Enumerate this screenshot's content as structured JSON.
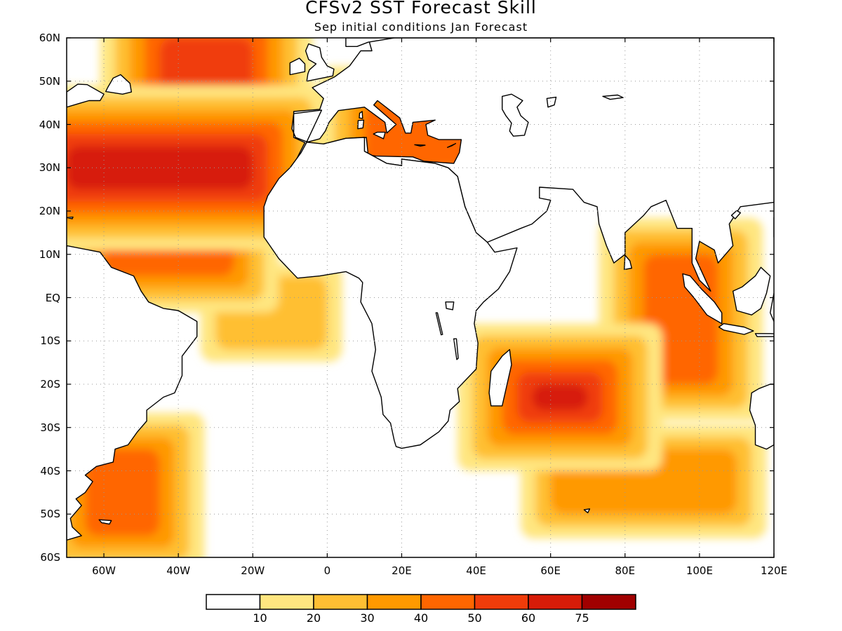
{
  "title": "CFSv2 SST Forecast Skill",
  "subtitle": "Sep initial conditions  Jan Forecast",
  "lat_labels": [
    "60N",
    "50N",
    "40N",
    "30N",
    "20N",
    "10N",
    "EQ",
    "10S",
    "20S",
    "30S",
    "40S",
    "50S",
    "60S"
  ],
  "lon_labels": [
    "60W",
    "40W",
    "20W",
    "0",
    "20E",
    "40E",
    "60E",
    "80E",
    "100E",
    "120E"
  ],
  "colorbar": {
    "labels": [
      "10",
      "20",
      "30",
      "40",
      "50",
      "60",
      "75"
    ],
    "colors": [
      "#ffffff",
      "#ffe680",
      "#ffbf33",
      "#ff9900",
      "#ff6600",
      "#f03c0a",
      "#d71c08",
      "#a00000"
    ]
  },
  "chart_data": {
    "type": "heatmap",
    "title": "CFSv2 SST Forecast Skill",
    "subtitle": "Sep initial conditions  Jan Forecast",
    "variable": "SST forecast skill",
    "xlim": [
      -70,
      120
    ],
    "ylim": [
      -60,
      60
    ],
    "x_ticks": [
      -60,
      -40,
      -20,
      0,
      20,
      40,
      60,
      80,
      100,
      120
    ],
    "y_ticks": [
      60,
      50,
      40,
      30,
      20,
      10,
      0,
      -10,
      -20,
      -30,
      -40,
      -50,
      -60
    ],
    "levels": [
      10,
      20,
      30,
      40,
      50,
      60,
      75
    ],
    "grid": true,
    "regions": [
      {
        "lon": [
          -70,
          -20
        ],
        "lat": [
          25,
          35
        ],
        "level": 60
      },
      {
        "lon": [
          -45,
          -20
        ],
        "lat": [
          35,
          60
        ],
        "level": 50
      },
      {
        "lon": [
          -60,
          -25
        ],
        "lat": [
          5,
          25
        ],
        "level": 40
      },
      {
        "lon": [
          -30,
          0
        ],
        "lat": [
          -12,
          5
        ],
        "level": 20
      },
      {
        "lon": [
          55,
          70
        ],
        "lat": [
          -26,
          -20
        ],
        "level": 60
      },
      {
        "lon": [
          85,
          105
        ],
        "lat": [
          -20,
          10
        ],
        "level": 40
      },
      {
        "lon": [
          -65,
          -45
        ],
        "lat": [
          -55,
          -35
        ],
        "level": 40
      },
      {
        "lon": [
          60,
          110
        ],
        "lat": [
          -50,
          -35
        ],
        "level": 30
      },
      {
        "lon": [
          10,
          40
        ],
        "lat": [
          30,
          45
        ],
        "level": 40
      }
    ]
  }
}
